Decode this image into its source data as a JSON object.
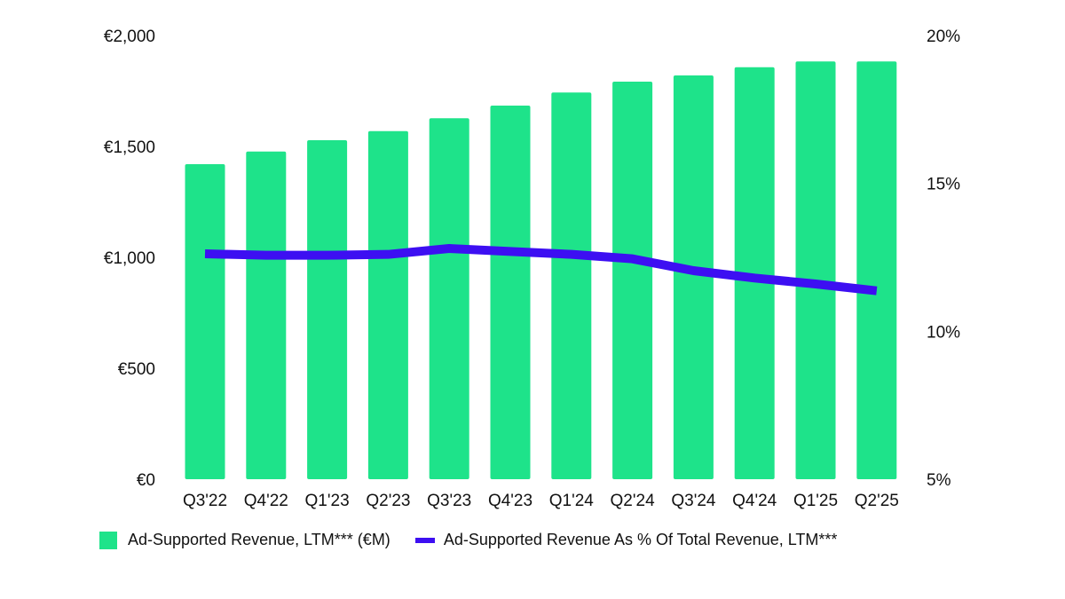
{
  "chart_data": {
    "type": "bar+line",
    "categories": [
      "Q3'22",
      "Q4'22",
      "Q1'23",
      "Q2'23",
      "Q3'23",
      "Q4'23",
      "Q1'24",
      "Q2'24",
      "Q3'24",
      "Q4'24",
      "Q1'25",
      "Q2'25"
    ],
    "series": [
      {
        "name": "Ad-Supported Revenue, LTM*** (€M)",
        "type": "bar",
        "axis": "left",
        "color": "#1ee38a",
        "values": [
          1420,
          1477,
          1528,
          1569,
          1627,
          1684,
          1743,
          1792,
          1820,
          1857,
          1883,
          1883
        ]
      },
      {
        "name": "Ad-Supported Revenue As % Of Total Revenue, LTM***",
        "type": "line",
        "axis": "right",
        "color": "#3d0ff2",
        "values": [
          12.62,
          12.57,
          12.57,
          12.6,
          12.8,
          12.7,
          12.6,
          12.45,
          12.05,
          11.8,
          11.6,
          11.37
        ]
      }
    ],
    "left_axis": {
      "ylim": [
        0,
        2000
      ],
      "ticks": [
        0,
        500,
        1000,
        1500,
        2000
      ],
      "tick_labels": [
        "€0",
        "€500",
        "€1,000",
        "€1,500",
        "€2,000"
      ]
    },
    "right_axis": {
      "ylim": [
        5,
        20
      ],
      "ticks": [
        5,
        10,
        15,
        20
      ],
      "tick_labels": [
        "5%",
        "10%",
        "15%",
        "20%"
      ]
    },
    "grid": false,
    "legend": "bottom",
    "title": "",
    "xlabel": "",
    "ylabel": ""
  }
}
